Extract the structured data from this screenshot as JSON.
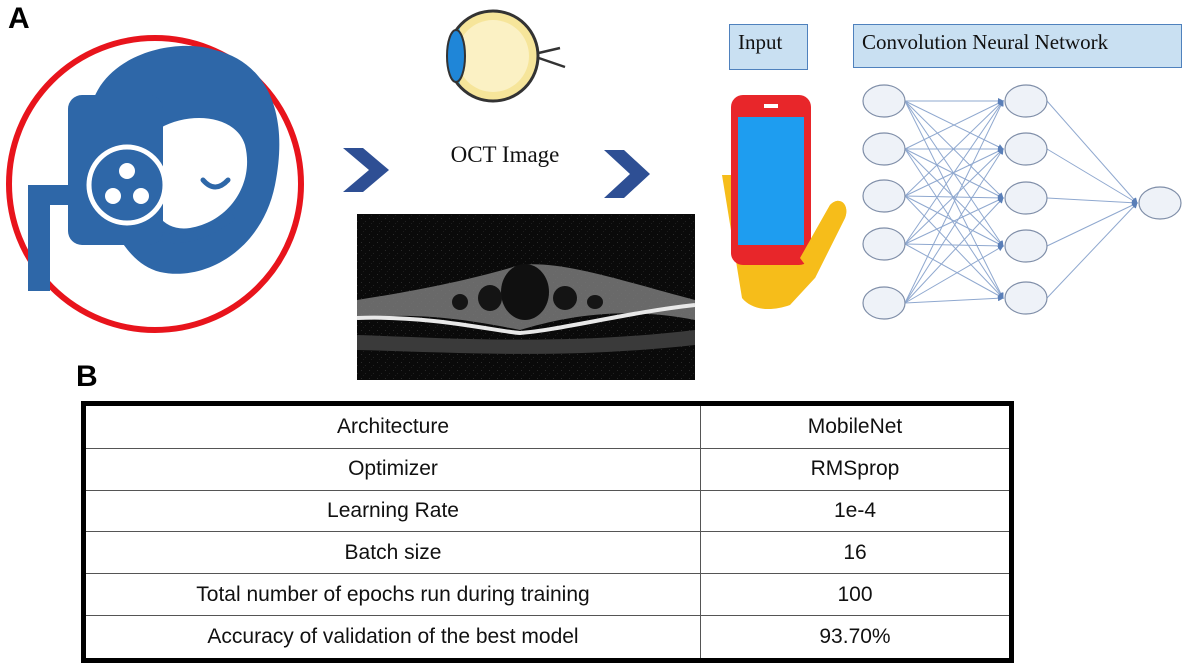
{
  "panels": {
    "a": "A",
    "b": "B"
  },
  "diagram": {
    "oct_caption": "OCT Image",
    "input_label": "Input",
    "cnn_label": "Convolution Neural Network",
    "icons": [
      "patient-eye-exam-icon",
      "eyeball-icon",
      "smartphone-in-hand-icon",
      "oct-scan-image"
    ],
    "colors": {
      "blue": "#2e67a8",
      "red_ring": "#e8141c",
      "arrow": "#2e4f94",
      "phone": "#e8262a",
      "screen": "#1e9df0",
      "hand": "#f6bd1a"
    }
  },
  "table": {
    "rows": [
      {
        "param": "Architecture",
        "value": "MobileNet"
      },
      {
        "param": "Optimizer",
        "value": "RMSprop"
      },
      {
        "param": "Learning Rate",
        "value": "1e-4"
      },
      {
        "param": "Batch size",
        "value": "16"
      },
      {
        "param": "Total number of epochs run during training",
        "value": "100"
      },
      {
        "param": "Accuracy of validation of the best model",
        "value": "93.70%"
      }
    ]
  }
}
